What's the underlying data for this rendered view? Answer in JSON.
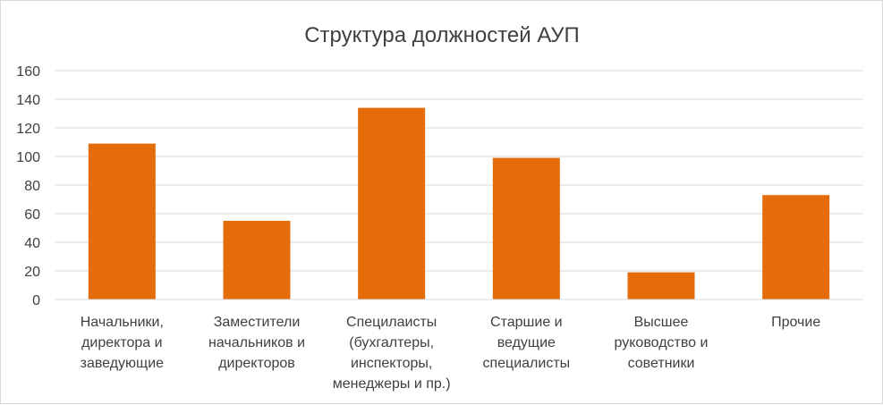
{
  "chart_data": {
    "type": "bar",
    "title": "Структура должностей АУП",
    "xlabel": "",
    "ylabel": "",
    "ylim": [
      0,
      160
    ],
    "yticks": [
      0,
      20,
      40,
      60,
      80,
      100,
      120,
      140,
      160
    ],
    "grid": true,
    "legend": "none",
    "bar_color": "#E46C0A",
    "categories": [
      [
        "Начальники,",
        "директора и",
        "заведующие"
      ],
      [
        "Заместители",
        "начальников и",
        "директоров"
      ],
      [
        "Специлаисты",
        "(бухгалтеры,",
        "инспекторы,",
        "менеджеры и пр.)"
      ],
      [
        "Старшие и",
        "ведущие",
        "специалисты"
      ],
      [
        "Высшее",
        "руководство и",
        "советники"
      ],
      [
        "Прочие"
      ]
    ],
    "values": [
      109,
      55,
      134,
      99,
      19,
      73
    ]
  }
}
